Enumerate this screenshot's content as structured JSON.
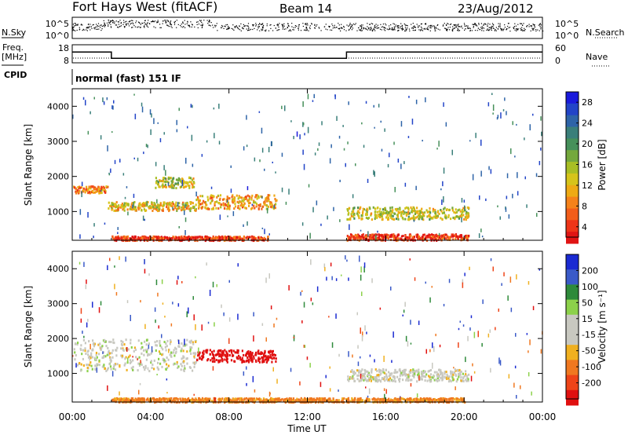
{
  "header": {
    "station": "Fort Hays West (fitACF)",
    "beam": "Beam 14",
    "date": "23/Aug/2012"
  },
  "labels": {
    "nsky": "N.Sky",
    "freq_top": "Freq.",
    "freq_unit": "[MHz]",
    "cpid": "CPID",
    "nsearch": "N.Search",
    "nave": "Nave",
    "cpid_text": "normal (fast) 151 IF",
    "time_axis": "Time UT",
    "slant_range": "Slant Range [km]",
    "power_label": "Power [dB]",
    "velocity_label": "Velocity [m s⁻¹]"
  },
  "noise_axis": {
    "left_ticks": [
      "10^5",
      "10^0"
    ],
    "right_ticks": [
      "10^5",
      "10^0"
    ]
  },
  "freq_axis": {
    "left_ticks": [
      "18",
      "8"
    ],
    "right_ticks": [
      "60",
      "0"
    ]
  },
  "chart_data": [
    {
      "type": "line",
      "panel": "frequency",
      "series": [
        {
          "x": [
            "00:00",
            "02:00",
            "02:00",
            "14:00",
            "14:00",
            "24:00"
          ],
          "y": [
            14,
            14,
            10.5,
            10.5,
            14,
            14
          ]
        }
      ],
      "ylim": [
        8,
        18
      ]
    },
    {
      "type": "heatmap",
      "panel": "power",
      "xlabel": "Time UT",
      "ylabel": "Slant Range [km]",
      "x_ticks": [
        "00:00",
        "04:00",
        "08:00",
        "12:00",
        "16:00",
        "20:00",
        "00:00"
      ],
      "y_ticks": [
        1000,
        2000,
        3000,
        4000
      ],
      "ylim": [
        180,
        4500
      ],
      "colorbar": {
        "label": "Power [dB]",
        "ticks": [
          4,
          8,
          12,
          16,
          20,
          24,
          28
        ],
        "colors": [
          "#1a1adc",
          "#2244c8",
          "#2e64a8",
          "#3a7f7a",
          "#46905a",
          "#74a83c",
          "#a8be24",
          "#d6c41a",
          "#eeaa14",
          "#f5821a",
          "#f25d1a",
          "#ee3418",
          "#e01414"
        ]
      },
      "regions": [
        {
          "t": [
            0.0,
            1.8
          ],
          "r": [
            1550,
            1750
          ],
          "level": 22
        },
        {
          "t": [
            1.8,
            6.3
          ],
          "r": [
            1050,
            1300
          ],
          "level": 18
        },
        {
          "t": [
            6.3,
            10.4
          ],
          "r": [
            1100,
            1500
          ],
          "level": 20
        },
        {
          "t": [
            4.2,
            6.3
          ],
          "r": [
            1700,
            2000
          ],
          "level": 16
        },
        {
          "t": [
            14.0,
            20.2
          ],
          "r": [
            800,
            1150
          ],
          "level": 16
        },
        {
          "t": [
            14.0,
            20.2
          ],
          "r": [
            200,
            380
          ],
          "level": 26
        },
        {
          "t": [
            2.0,
            10.0
          ],
          "r": [
            200,
            320
          ],
          "level": 26
        }
      ]
    },
    {
      "type": "heatmap",
      "panel": "velocity",
      "xlabel": "Time UT",
      "ylabel": "Slant Range [km]",
      "x_ticks": [
        "00:00",
        "04:00",
        "08:00",
        "12:00",
        "16:00",
        "20:00",
        "00:00"
      ],
      "y_ticks": [
        1000,
        2000,
        3000,
        4000
      ],
      "ylim": [
        180,
        4500
      ],
      "colorbar": {
        "label": "Velocity [m s⁻¹]",
        "ticks": [
          "200",
          "100",
          "50",
          "15",
          "-15",
          "-50",
          "-100",
          "-200"
        ],
        "colors": [
          "#1a2ad2",
          "#3a5ac8",
          "#2e8a3a",
          "#8cd14a",
          "#c8c8c0",
          "#c8c8c0",
          "#f0b020",
          "#f07820",
          "#ee4418",
          "#e01010"
        ]
      },
      "regions": [
        {
          "t": [
            0.0,
            6.3
          ],
          "r": [
            1100,
            2000
          ],
          "level": 0
        },
        {
          "t": [
            6.3,
            10.4
          ],
          "r": [
            1350,
            1700
          ],
          "level": -180
        },
        {
          "t": [
            14.0,
            20.2
          ],
          "r": [
            800,
            1150
          ],
          "level": 0
        },
        {
          "t": [
            2.0,
            20.0
          ],
          "r": [
            200,
            320
          ],
          "level": -60
        }
      ]
    }
  ]
}
